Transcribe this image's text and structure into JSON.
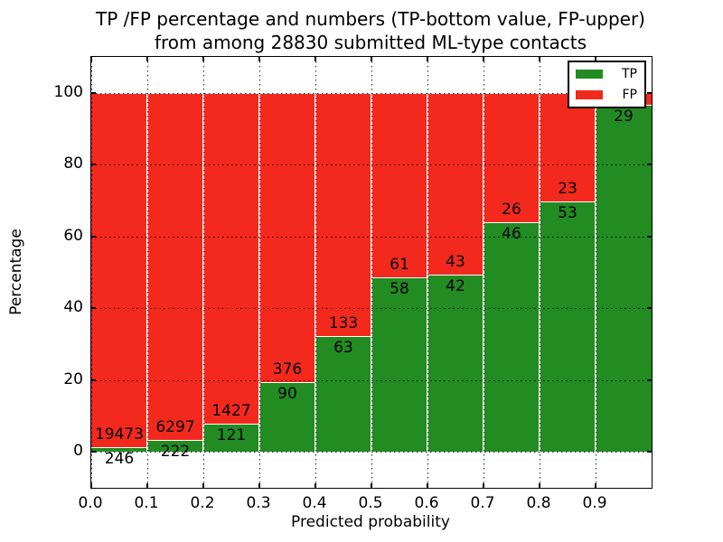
{
  "title": {
    "line1": "TP /FP percentage and numbers (TP-bottom value, FP-upper)",
    "line2": "from among 28830 submitted ML-type contacts"
  },
  "chart_data": {
    "type": "bar",
    "stacked": true,
    "normalized_to_percent": true,
    "title": "TP /FP percentage and numbers (TP-bottom value, FP-upper) from among 28830 submitted ML-type contacts",
    "xlabel": "Predicted probability",
    "ylabel": "Percentage",
    "xlim": [
      0.0,
      1.0
    ],
    "ylim": [
      -10,
      110
    ],
    "x_ticks": [
      "0.0",
      "0.1",
      "0.2",
      "0.3",
      "0.4",
      "0.5",
      "0.6",
      "0.7",
      "0.8",
      "0.9"
    ],
    "y_ticks": [
      0,
      20,
      40,
      60,
      80,
      100
    ],
    "grid": "dotted",
    "total_contacts": 28830,
    "bin_width": 0.1,
    "colors": {
      "tp": "#228b22",
      "fp": "#f3291d",
      "text": "#000000",
      "background": "#ffffff"
    },
    "legend": {
      "position": "upper right",
      "entries": [
        "TP",
        "FP"
      ]
    },
    "series": [
      {
        "name": "TP",
        "color": "#228b22",
        "counts": [
          246,
          222,
          121,
          90,
          63,
          58,
          42,
          46,
          53,
          29
        ]
      },
      {
        "name": "FP",
        "color": "#f3291d",
        "counts": [
          19473,
          6297,
          1427,
          376,
          133,
          61,
          43,
          26,
          23,
          1
        ]
      }
    ],
    "bins": [
      {
        "range": "0.0-0.1",
        "x0": 0.0,
        "tp": 246,
        "fp": 19473,
        "tp_pct": 1.25,
        "fp_label_visible": true
      },
      {
        "range": "0.1-0.2",
        "x0": 0.1,
        "tp": 222,
        "fp": 6297,
        "tp_pct": 3.41,
        "fp_label_visible": true
      },
      {
        "range": "0.2-0.3",
        "x0": 0.2,
        "tp": 121,
        "fp": 1427,
        "tp_pct": 7.82,
        "fp_label_visible": true
      },
      {
        "range": "0.3-0.4",
        "x0": 0.3,
        "tp": 90,
        "fp": 376,
        "tp_pct": 19.31,
        "fp_label_visible": true
      },
      {
        "range": "0.4-0.5",
        "x0": 0.4,
        "tp": 63,
        "fp": 133,
        "tp_pct": 32.14,
        "fp_label_visible": true
      },
      {
        "range": "0.5-0.6",
        "x0": 0.5,
        "tp": 58,
        "fp": 61,
        "tp_pct": 48.74,
        "fp_label_visible": true
      },
      {
        "range": "0.6-0.7",
        "x0": 0.6,
        "tp": 42,
        "fp": 43,
        "tp_pct": 49.41,
        "fp_label_visible": true
      },
      {
        "range": "0.7-0.8",
        "x0": 0.7,
        "tp": 46,
        "fp": 26,
        "tp_pct": 63.89,
        "fp_label_visible": true
      },
      {
        "range": "0.8-0.9",
        "x0": 0.8,
        "tp": 53,
        "fp": 23,
        "tp_pct": 69.74,
        "fp_label_visible": true
      },
      {
        "range": "0.9-1.0",
        "x0": 0.9,
        "tp": 29,
        "fp": 1,
        "tp_pct": 96.67,
        "fp_label_visible": false
      }
    ]
  }
}
